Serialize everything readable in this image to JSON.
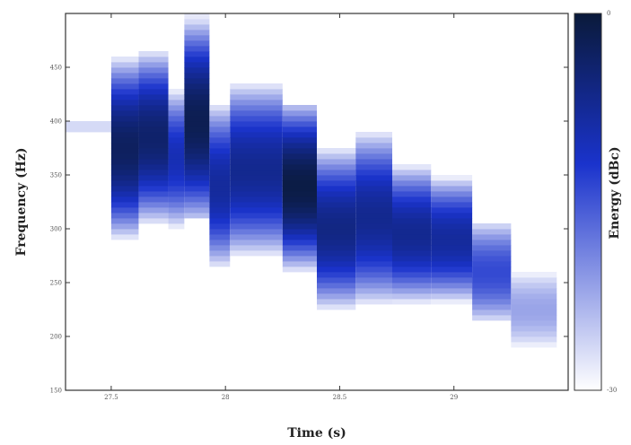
{
  "chart_data": {
    "type": "heatmap",
    "title": "",
    "xlabel": "Time (s)",
    "ylabel": "Frequency (Hz)",
    "xlim": [
      27.3,
      29.5
    ],
    "ylim": [
      150,
      500
    ],
    "x_ticks": [
      {
        "value": 27.5,
        "label": "27.5"
      },
      {
        "value": 28.0,
        "label": "28"
      },
      {
        "value": 28.5,
        "label": "28.5"
      },
      {
        "value": 29.0,
        "label": "29"
      }
    ],
    "y_ticks": [
      {
        "value": 150,
        "label": "150"
      },
      {
        "value": 200,
        "label": "200"
      },
      {
        "value": 250,
        "label": "250"
      },
      {
        "value": 300,
        "label": "300"
      },
      {
        "value": 350,
        "label": "350"
      },
      {
        "value": 400,
        "label": "400"
      },
      {
        "value": 450,
        "label": "450"
      }
    ],
    "colorbar": {
      "label": "Energy (dBc)",
      "min_label": "-30",
      "max_label": "0",
      "min": -30,
      "max": 0,
      "colors": [
        "#ffffff",
        "#1a33cc",
        "#0a1a3a"
      ]
    },
    "segments": [
      {
        "t0": 27.3,
        "t1": 27.5,
        "fmin": 380,
        "fmax": 410,
        "fcenter": 395,
        "peak": -26
      },
      {
        "t0": 27.5,
        "t1": 27.62,
        "fmin": 290,
        "fmax": 460,
        "fcenter": 375,
        "peak": -3
      },
      {
        "t0": 27.62,
        "t1": 27.75,
        "fmin": 305,
        "fmax": 470,
        "fcenter": 385,
        "peak": -4
      },
      {
        "t0": 27.75,
        "t1": 27.82,
        "fmin": 290,
        "fmax": 440,
        "fcenter": 365,
        "peak": -10
      },
      {
        "t0": 27.82,
        "t1": 27.93,
        "fmin": 310,
        "fmax": 500,
        "fcenter": 400,
        "peak": -2
      },
      {
        "t0": 27.93,
        "t1": 28.02,
        "fmin": 260,
        "fmax": 430,
        "fcenter": 340,
        "peak": -8
      },
      {
        "t0": 28.02,
        "t1": 28.25,
        "fmin": 265,
        "fmax": 440,
        "fcenter": 355,
        "peak": -7
      },
      {
        "t0": 28.25,
        "t1": 28.4,
        "fmin": 260,
        "fmax": 415,
        "fcenter": 340,
        "peak": -1
      },
      {
        "t0": 28.4,
        "t1": 28.57,
        "fmin": 215,
        "fmax": 375,
        "fcenter": 300,
        "peak": -6
      },
      {
        "t0": 28.57,
        "t1": 28.73,
        "fmin": 225,
        "fmax": 400,
        "fcenter": 310,
        "peak": -7
      },
      {
        "t0": 28.73,
        "t1": 28.9,
        "fmin": 225,
        "fmax": 365,
        "fcenter": 295,
        "peak": -7
      },
      {
        "t0": 28.9,
        "t1": 29.08,
        "fmin": 225,
        "fmax": 355,
        "fcenter": 290,
        "peak": -8
      },
      {
        "t0": 29.08,
        "t1": 29.25,
        "fmin": 195,
        "fmax": 320,
        "fcenter": 260,
        "peak": -14
      },
      {
        "t0": 29.25,
        "t1": 29.45,
        "fmin": 160,
        "fmax": 290,
        "fcenter": 225,
        "peak": -22
      }
    ]
  }
}
